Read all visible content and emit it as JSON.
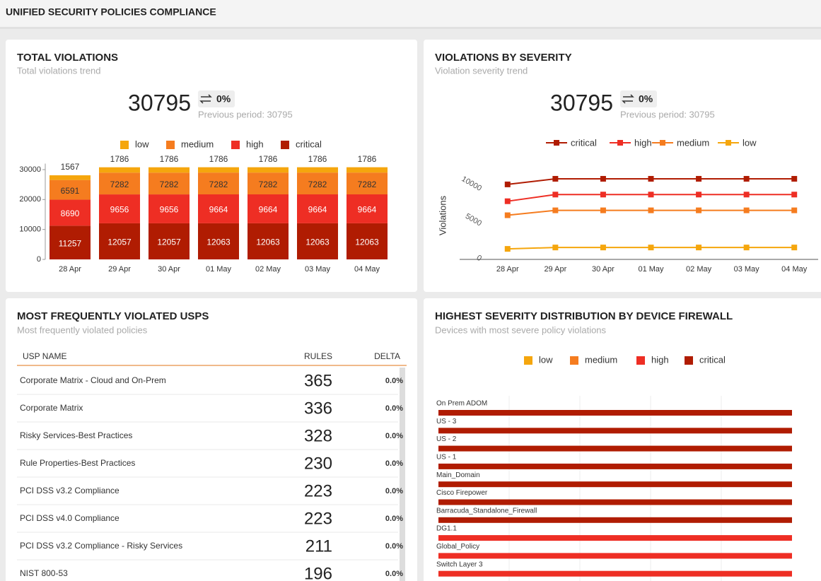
{
  "header": {
    "title": "UNIFIED SECURITY POLICIES COMPLIANCE"
  },
  "total_violations": {
    "title": "TOTAL VIOLATIONS",
    "subtitle": "Total violations trend",
    "total": 30795,
    "delta": "0%",
    "previous": "Previous period: 30795",
    "chart_data": {
      "type": "stacked_bar",
      "categories": [
        "28 Apr",
        "29 Apr",
        "30 Apr",
        "01 May",
        "02 May",
        "03 May",
        "04 May"
      ],
      "series": [
        {
          "name": "low",
          "color": "#f5a60d",
          "values": [
            1567,
            1786,
            1786,
            1786,
            1786,
            1786,
            1786
          ]
        },
        {
          "name": "medium",
          "color": "#f57c1f",
          "values": [
            6591,
            7282,
            7282,
            7282,
            7282,
            7282,
            7282
          ]
        },
        {
          "name": "high",
          "color": "#ee2e24",
          "values": [
            8690,
            9656,
            9656,
            9664,
            9664,
            9664,
            9664
          ]
        },
        {
          "name": "critical",
          "color": "#b01c02",
          "values": [
            11257,
            12057,
            12057,
            12063,
            12063,
            12063,
            12063
          ]
        }
      ],
      "ylim": [
        0,
        32000
      ],
      "yticks": [
        0,
        10000,
        20000,
        30000
      ],
      "legend": "top"
    }
  },
  "violations_by_severity": {
    "title": "VIOLATIONS BY SEVERITY",
    "subtitle": "Violation severity trend",
    "total": 30795,
    "delta": "0%",
    "previous": "Previous period: 30795",
    "chart_data": {
      "type": "line",
      "y_label": "Violations",
      "categories": [
        "28 Apr",
        "29 Apr",
        "30 Apr",
        "01 May",
        "02 May",
        "03 May",
        "04 May"
      ],
      "series": [
        {
          "name": "critical",
          "color": "#b01c02",
          "values": [
            10700,
            11500,
            11500,
            11500,
            11500,
            11500,
            11500
          ]
        },
        {
          "name": "high",
          "color": "#ee2e24",
          "values": [
            8300,
            9250,
            9250,
            9250,
            9250,
            9250,
            9250
          ]
        },
        {
          "name": "medium",
          "color": "#f57c1f",
          "values": [
            6300,
            7000,
            7000,
            7000,
            7000,
            7000,
            7000
          ]
        },
        {
          "name": "low",
          "color": "#f5a60d",
          "values": [
            1500,
            1700,
            1700,
            1700,
            1700,
            1700,
            1700
          ]
        }
      ],
      "ylim": [
        0,
        12000
      ],
      "yticks": [
        0,
        5000,
        10000
      ],
      "legend": "top"
    }
  },
  "frequent_usps": {
    "title": "MOST FREQUENTLY VIOLATED USPS",
    "subtitle": "Most frequently violated policies",
    "table": {
      "columns": [
        "USP NAME",
        "RULES",
        "DELTA"
      ],
      "rows": [
        [
          "Corporate Matrix - Cloud and On-Prem",
          365,
          "0.0%"
        ],
        [
          "Corporate Matrix",
          336,
          "0.0%"
        ],
        [
          "Risky Services-Best Practices",
          328,
          "0.0%"
        ],
        [
          "Rule Properties-Best Practices",
          230,
          "0.0%"
        ],
        [
          "PCI DSS v3.2 Compliance",
          223,
          "0.0%"
        ],
        [
          "PCI DSS v4.0 Compliance",
          223,
          "0.0%"
        ],
        [
          "PCI DSS v3.2 Compliance - Risky Services",
          211,
          "0.0%"
        ],
        [
          "NIST 800-53",
          196,
          "0.0%"
        ]
      ]
    }
  },
  "device_distribution": {
    "title": "HIGHEST SEVERITY DISTRIBUTION BY DEVICE FIREWALL",
    "subtitle": "Devices with most severe policy violations",
    "chart_data": {
      "type": "hbar_stacked",
      "categories": [
        "On Prem ADOM",
        "US - 3",
        "US - 2",
        "US - 1",
        "Main_Domain",
        "Cisco Firepower",
        "Barracuda_Standalone_Firewall",
        "DG1.1",
        "Global_Policy",
        "Switch Layer 3"
      ],
      "series": [
        {
          "name": "low",
          "color": "#f5a60d",
          "values": [
            0,
            0,
            0,
            0,
            0,
            0,
            0,
            0,
            0,
            0
          ]
        },
        {
          "name": "medium",
          "color": "#f57c1f",
          "values": [
            0,
            0,
            0,
            0,
            0,
            0,
            0,
            0,
            0,
            0
          ]
        },
        {
          "name": "high",
          "color": "#ee2e24",
          "values": [
            0,
            0,
            0,
            0,
            0,
            0,
            0,
            100,
            100,
            100
          ]
        },
        {
          "name": "critical",
          "color": "#b01c02",
          "values": [
            100,
            100,
            100,
            100,
            100,
            100,
            100,
            0,
            0,
            0
          ]
        }
      ],
      "xlim": [
        0,
        100
      ],
      "grid": true,
      "legend": "top"
    }
  }
}
